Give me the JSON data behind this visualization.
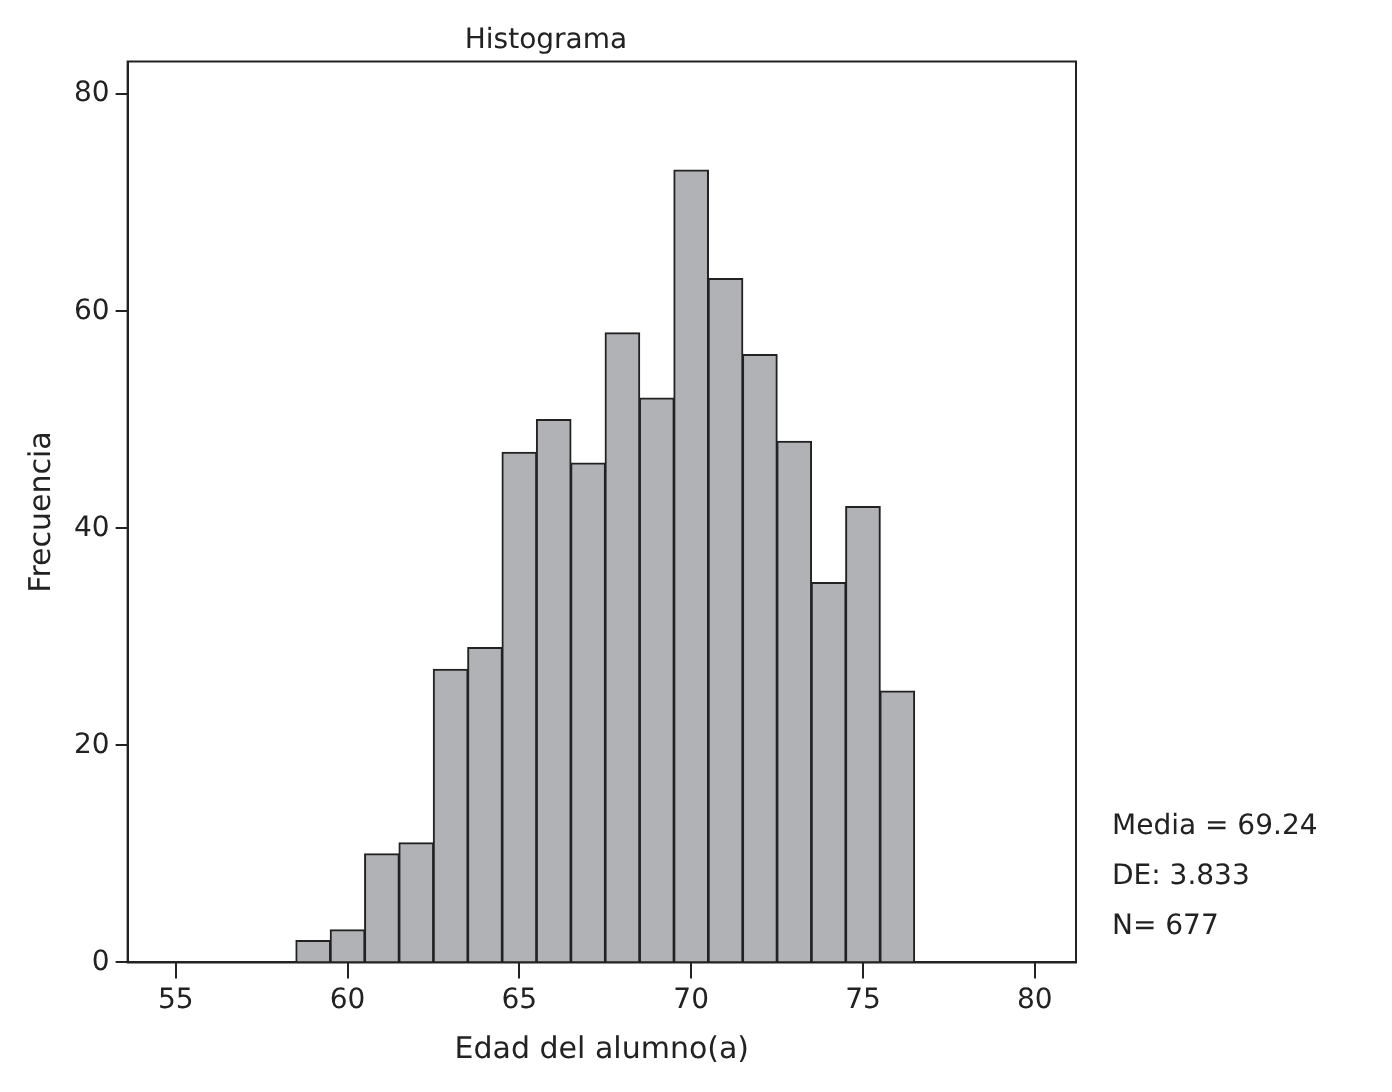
{
  "chart_data": {
    "type": "histogram",
    "title": "Histograma",
    "xlabel": "Edad del alumno(a)",
    "ylabel": "Frecuencia",
    "bins": [
      58.5,
      59.5,
      60.5,
      61.5,
      62.5,
      63.5,
      64.5,
      65.5,
      66.5,
      67.5,
      68.5,
      69.5,
      70.5,
      71.5,
      72.5,
      73.5,
      74.5,
      75.5,
      76.5
    ],
    "values": [
      2,
      3,
      10,
      11,
      27,
      29,
      47,
      50,
      46,
      58,
      52,
      73,
      63,
      56,
      48,
      35,
      42,
      25
    ],
    "color": "#b1b2b6",
    "xlim": [
      53.6,
      81.2
    ],
    "xticks": [
      55,
      60,
      65,
      70,
      75,
      80
    ],
    "ylim": [
      0,
      83
    ],
    "yticks": [
      0,
      20,
      40,
      60,
      80
    ],
    "grid": false,
    "legend": false,
    "annotations": [
      "Media = 69.24",
      "DE: 3.833",
      "N= 677"
    ]
  }
}
